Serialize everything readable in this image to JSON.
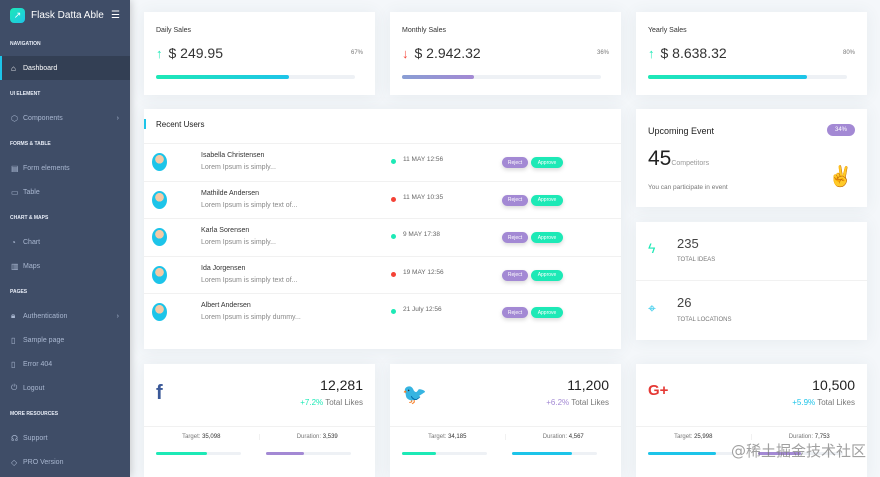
{
  "sidebar": {
    "brand": "Flask Datta Able",
    "sections": [
      {
        "caption": "NAVIGATION",
        "items": [
          {
            "label": "Dashboard",
            "icon": "home-icon",
            "active": true
          }
        ]
      },
      {
        "caption": "UI ELEMENT",
        "items": [
          {
            "label": "Components",
            "icon": "box-icon",
            "chevron": true
          }
        ]
      },
      {
        "caption": "FORMS & TABLE",
        "items": [
          {
            "label": "Form elements",
            "icon": "file-text-icon"
          },
          {
            "label": "Table",
            "icon": "server-icon"
          }
        ]
      },
      {
        "caption": "CHART & MAPS",
        "items": [
          {
            "label": "Chart",
            "icon": "pie-chart-icon"
          },
          {
            "label": "Maps",
            "icon": "map-icon"
          }
        ]
      },
      {
        "caption": "PAGES",
        "items": [
          {
            "label": "Authentication",
            "icon": "lock-icon",
            "chevron": true
          },
          {
            "label": "Sample page",
            "icon": "sidebar-icon"
          },
          {
            "label": "Error 404",
            "icon": "sidebar-icon"
          },
          {
            "label": "Logout",
            "icon": "power-icon"
          }
        ]
      },
      {
        "caption": "MORE RESOURCES",
        "items": [
          {
            "label": "Support",
            "icon": "headphones-icon"
          },
          {
            "label": "PRO Version",
            "icon": "tag-icon"
          }
        ]
      }
    ]
  },
  "sales": [
    {
      "title": "Daily Sales",
      "value": "$ 249.95",
      "percent": "67%",
      "progress": 67,
      "trend": "up",
      "color": "#1de9b6"
    },
    {
      "title": "Monthly Sales",
      "value": "$ 2.942.32",
      "percent": "36%",
      "progress": 36,
      "trend": "down",
      "color": "#a389d4"
    },
    {
      "title": "Yearly Sales",
      "value": "$ 8.638.32",
      "percent": "80%",
      "progress": 80,
      "trend": "up",
      "color": "#1de9b6"
    }
  ],
  "recent_users": {
    "title": "Recent Users",
    "reject_label": "Reject",
    "approve_label": "Approve",
    "rows": [
      {
        "name": "Isabella Christensen",
        "desc": "Lorem Ipsum is simply...",
        "date": "11 MAY 12:56",
        "status": "green"
      },
      {
        "name": "Mathilde Andersen",
        "desc": "Lorem Ipsum is simply text of...",
        "date": "11 MAY 10:35",
        "status": "red"
      },
      {
        "name": "Karla Sorensen",
        "desc": "Lorem Ipsum is simply...",
        "date": "9 MAY 17:38",
        "status": "green"
      },
      {
        "name": "Ida Jorgensen",
        "desc": "Lorem Ipsum is simply text of...",
        "date": "19 MAY 12:56",
        "status": "red"
      },
      {
        "name": "Albert Andersen",
        "desc": "Lorem Ipsum is simply dummy...",
        "date": "21 July 12:56",
        "status": "green"
      }
    ]
  },
  "event": {
    "title": "Upcoming Event",
    "badge": "34%",
    "count": "45",
    "count_label": "Competitors",
    "note": "You can participate in event"
  },
  "stats": [
    {
      "value": "235",
      "label": "TOTAL IDEAS"
    },
    {
      "value": "26",
      "label": "TOTAL LOCATIONS"
    }
  ],
  "social": [
    {
      "icon": "facebook-icon",
      "glyph": "f",
      "color": "#3b5998",
      "value": "12,281",
      "change": "+7.2%",
      "change_color": "#1de9b6",
      "label": "Total Likes",
      "target_label": "Target:",
      "target": "35,098",
      "duration_label": "Duration:",
      "duration": "3,539",
      "target_progress": 60,
      "duration_progress": 45,
      "bar1": "#1de9b6",
      "bar2": "#a389d4"
    },
    {
      "icon": "twitter-icon",
      "glyph": "🐦",
      "color": "#1da1f2",
      "value": "11,200",
      "change": "+6.2%",
      "change_color": "#a389d4",
      "label": "Total Likes",
      "target_label": "Target:",
      "target": "34,185",
      "duration_label": "Duration:",
      "duration": "4,567",
      "target_progress": 40,
      "duration_progress": 70,
      "bar1": "#1de9b6",
      "bar2": "#1dc4e9"
    },
    {
      "icon": "google-plus-icon",
      "glyph": "G+",
      "color": "#e53935",
      "value": "10,500",
      "change": "+5.9%",
      "change_color": "#1dc4e9",
      "label": "Total Likes",
      "target_label": "Target:",
      "target": "25,998",
      "duration_label": "Duration:",
      "duration": "7,753",
      "target_progress": 80,
      "duration_progress": 50,
      "bar1": "#1dc4e9",
      "bar2": "#a389d4"
    }
  ],
  "watermark": "@稀土掘金技术社区"
}
